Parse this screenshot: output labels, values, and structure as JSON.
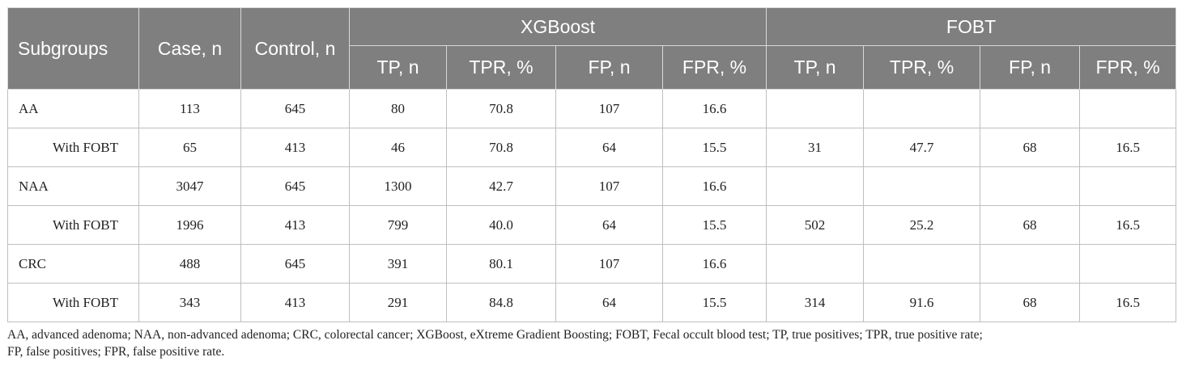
{
  "table": {
    "headers": {
      "subgroups": "Subgroups",
      "case": "Case, n",
      "control": "Control, n",
      "group1": "XGBoost",
      "group2": "FOBT",
      "tp": "TP, n",
      "tpr": "TPR, %",
      "fp": "FP, n",
      "fpr": "FPR, %"
    },
    "rows": [
      {
        "subgroup": "AA",
        "case": "113",
        "control": "645",
        "x_tp": "80",
        "x_tpr": "70.8",
        "x_fp": "107",
        "x_fpr": "16.6",
        "f_tp": "",
        "f_tpr": "",
        "f_fp": "",
        "f_fpr": ""
      },
      {
        "subgroup": "With FOBT",
        "case": "65",
        "control": "413",
        "x_tp": "46",
        "x_tpr": "70.8",
        "x_fp": "64",
        "x_fpr": "15.5",
        "f_tp": "31",
        "f_tpr": "47.7",
        "f_fp": "68",
        "f_fpr": "16.5"
      },
      {
        "subgroup": "NAA",
        "case": "3047",
        "control": "645",
        "x_tp": "1300",
        "x_tpr": "42.7",
        "x_fp": "107",
        "x_fpr": "16.6",
        "f_tp": "",
        "f_tpr": "",
        "f_fp": "",
        "f_fpr": ""
      },
      {
        "subgroup": "With FOBT",
        "case": "1996",
        "control": "413",
        "x_tp": "799",
        "x_tpr": "40.0",
        "x_fp": "64",
        "x_fpr": "15.5",
        "f_tp": "502",
        "f_tpr": "25.2",
        "f_fp": "68",
        "f_fpr": "16.5"
      },
      {
        "subgroup": "CRC",
        "case": "488",
        "control": "645",
        "x_tp": "391",
        "x_tpr": "80.1",
        "x_fp": "107",
        "x_fpr": "16.6",
        "f_tp": "",
        "f_tpr": "",
        "f_fp": "",
        "f_fpr": ""
      },
      {
        "subgroup": "With FOBT",
        "case": "343",
        "control": "413",
        "x_tp": "291",
        "x_tpr": "84.8",
        "x_fp": "64",
        "x_fpr": "15.5",
        "f_tp": "314",
        "f_tpr": "91.6",
        "f_fp": "68",
        "f_fpr": "16.5"
      }
    ]
  },
  "footnote": {
    "line1": "AA, advanced adenoma; NAA, non-advanced adenoma; CRC, colorectal cancer; XGBoost, eXtreme Gradient Boosting; FOBT, Fecal occult blood test; TP, true positives; TPR, true positive rate;",
    "line2": "FP, false positives; FPR, false positive rate."
  }
}
